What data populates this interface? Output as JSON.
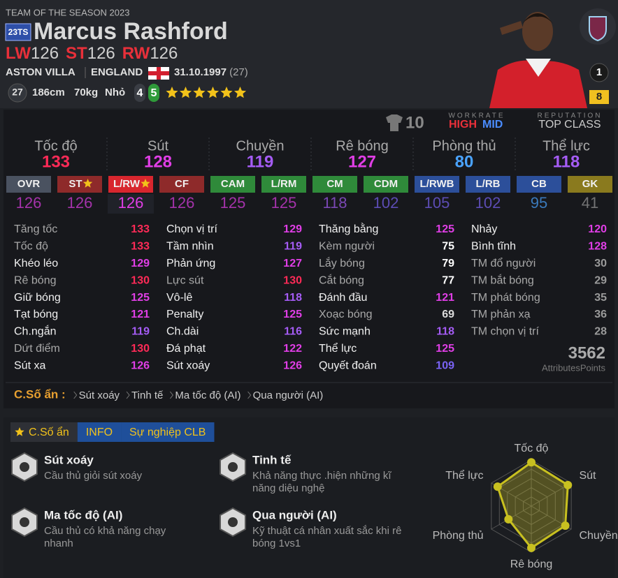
{
  "header": {
    "season": "TEAM OF THE SEASON 2023",
    "badge": "23TS",
    "name": "Marcus Rashford",
    "positions": [
      {
        "pos": "LW",
        "ovr": 126
      },
      {
        "pos": "ST",
        "ovr": 126
      },
      {
        "pos": "RW",
        "ovr": 126
      }
    ],
    "club": "ASTON VILLA",
    "nation": "ENGLAND",
    "dob": "31.10.1997",
    "age": "(27)",
    "level": 27,
    "height": "186cm",
    "weight": "70kg",
    "body": "Nhỏ",
    "weak_foot": 4,
    "skill_moves": 5,
    "stars": 6,
    "team_rank": 1,
    "upgrade": 8
  },
  "info_bar": {
    "shirt_number": 10,
    "workrate_label": "WORKRATE",
    "workrate_attack": "HIGH",
    "workrate_defense": "MID",
    "reputation_label": "REPUTATION",
    "reputation": "TOP CLASS"
  },
  "summary": [
    {
      "name": "Tốc độ",
      "value": 133
    },
    {
      "name": "Sút",
      "value": 128
    },
    {
      "name": "Chuyền",
      "value": 119
    },
    {
      "name": "Rê bóng",
      "value": 127
    },
    {
      "name": "Phòng thủ",
      "value": 80
    },
    {
      "name": "Thể lực",
      "value": 118
    }
  ],
  "positions": [
    {
      "label": "OVR",
      "value": 126,
      "color": "#4a5260"
    },
    {
      "label": "ST",
      "value": 126,
      "color": "#8e2a2a",
      "star": true
    },
    {
      "label": "L/RW",
      "value": 126,
      "color": "#d8262e",
      "star": true,
      "selected": true
    },
    {
      "label": "CF",
      "value": 126,
      "color": "#8e2a2a"
    },
    {
      "label": "CAM",
      "value": 125,
      "color": "#2f8a3a"
    },
    {
      "label": "L/RM",
      "value": 125,
      "color": "#2f8a3a"
    },
    {
      "label": "CM",
      "value": 118,
      "color": "#2f8a3a"
    },
    {
      "label": "CDM",
      "value": 102,
      "color": "#2f8a3a"
    },
    {
      "label": "L/RWB",
      "value": 105,
      "color": "#2c4f9a"
    },
    {
      "label": "L/RB",
      "value": 102,
      "color": "#2c4f9a"
    },
    {
      "label": "CB",
      "value": 95,
      "color": "#2c4f9a"
    },
    {
      "label": "GK",
      "value": 41,
      "color": "#8a7a1e"
    }
  ],
  "attributes": [
    [
      {
        "name": "Tăng tốc",
        "value": 133
      },
      {
        "name": "Tốc độ",
        "value": 133
      },
      {
        "name": "Khéo léo",
        "value": 129,
        "key": true
      },
      {
        "name": "Rê bóng",
        "value": 130
      },
      {
        "name": "Giữ bóng",
        "value": 125,
        "key": true
      },
      {
        "name": "Tạt bóng",
        "value": 121,
        "key": true
      },
      {
        "name": "Ch.ngắn",
        "value": 119,
        "key": true
      },
      {
        "name": "Dứt điểm",
        "value": 130
      },
      {
        "name": "Sút xa",
        "value": 126,
        "key": true
      }
    ],
    [
      {
        "name": "Chọn vị trí",
        "value": 129,
        "key": true
      },
      {
        "name": "Tầm nhìn",
        "value": 119,
        "key": true
      },
      {
        "name": "Phản ứng",
        "value": 127,
        "key": true
      },
      {
        "name": "Lực sút",
        "value": 130
      },
      {
        "name": "Vô-lê",
        "value": 118,
        "key": true
      },
      {
        "name": "Penalty",
        "value": 125,
        "key": true
      },
      {
        "name": "Ch.dài",
        "value": 116,
        "key": true
      },
      {
        "name": "Đá phạt",
        "value": 122,
        "key": true
      },
      {
        "name": "Sút xoáy",
        "value": 126,
        "key": true
      }
    ],
    [
      {
        "name": "Thăng bằng",
        "value": 125,
        "key": true
      },
      {
        "name": "Kèm người",
        "value": 75
      },
      {
        "name": "Lắy bóng",
        "value": 79
      },
      {
        "name": "Cắt bóng",
        "value": 77
      },
      {
        "name": "Đánh đầu",
        "value": 121,
        "key": true
      },
      {
        "name": "Xoạc bóng",
        "value": 69
      },
      {
        "name": "Sức mạnh",
        "value": 118,
        "key": true
      },
      {
        "name": "Thể lực",
        "value": 125,
        "key": true
      },
      {
        "name": "Quyết đoán",
        "value": 109,
        "key": true
      }
    ],
    [
      {
        "name": "Nhảy",
        "value": 120,
        "key": true
      },
      {
        "name": "Bình tĩnh",
        "value": 128,
        "key": true
      },
      {
        "name": "TM đổ người",
        "value": 30
      },
      {
        "name": "TM bắt bóng",
        "value": 29
      },
      {
        "name": "TM phát bóng",
        "value": 35
      },
      {
        "name": "TM phản xạ",
        "value": 36
      },
      {
        "name": "TM chọn vị trí",
        "value": 28
      }
    ]
  ],
  "attribute_total": 3562,
  "attribute_total_label": "AttributesPoints",
  "hidden": {
    "label": "C.Số ẩn :",
    "items": [
      "Sút xoáy",
      "Tinh tế",
      "Ma tốc độ (AI)",
      "Qua người (AI)"
    ]
  },
  "tabs": [
    "C.Số ẩn",
    "INFO",
    "Sự nghiệp CLB"
  ],
  "traits": [
    {
      "title": "Sút xoáy",
      "desc": [
        "Cầu thủ giỏi sút xoáy"
      ]
    },
    {
      "title": "Ma tốc độ (AI)",
      "desc": [
        "Cầu thủ có khả năng chạy",
        "nhanh"
      ]
    },
    {
      "title": "Tinh tế",
      "desc": [
        "Khả năng thực .hiện những kĩ",
        "năng diệu nghệ"
      ]
    },
    {
      "title": "Qua người (AI)",
      "desc": [
        "Kỹ thuật cá nhân xuất sắc khi rê",
        "bóng 1vs1"
      ]
    }
  ],
  "radar": {
    "rlim": [
      0,
      140
    ]
  }
}
